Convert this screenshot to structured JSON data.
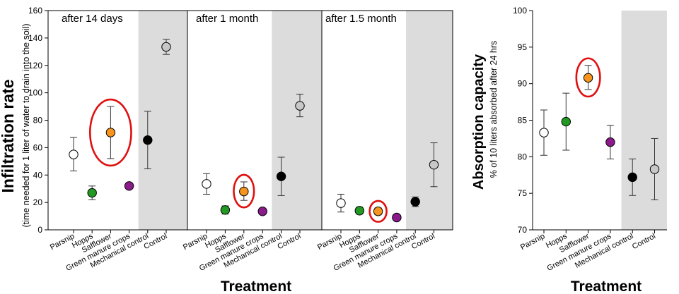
{
  "figure": {
    "left_ylabel": "Infiltration rate",
    "left_ylabel_sub": "(time needed for 1 liter of water to drain into the soil)",
    "left_xlabel": "Treatment",
    "right_ylabel": "Absorption capacity",
    "right_ylabel_sub": "% of 10 liters absorbed after 24 hrs",
    "right_xlabel": "Treatment"
  },
  "chart_data": [
    {
      "type": "scatter",
      "title": "after 14 days",
      "categories": [
        "Parsnip",
        "Hopps",
        "Safflower",
        "Green manure crops",
        "Mechanical control",
        "Control"
      ],
      "values": [
        55,
        27,
        71,
        32,
        65.5,
        133.5
      ],
      "error_low": [
        43,
        22,
        52,
        32,
        44.5,
        128
      ],
      "error_high": [
        67.5,
        32,
        90,
        32,
        86.5,
        139
      ],
      "ylim": [
        0,
        160
      ],
      "yticks": [
        0,
        20,
        40,
        60,
        80,
        100,
        120,
        140,
        160
      ],
      "shaded_categories": [
        "Mechanical control",
        "Control"
      ],
      "highlighted": [
        "Safflower"
      ],
      "point_colors": [
        "#ffffff",
        "#229922",
        "#f7941d",
        "#8b1a8b",
        "#000000",
        "#c8c8c8"
      ]
    },
    {
      "type": "scatter",
      "title": "after 1 month",
      "categories": [
        "Parsnip",
        "Hopps",
        "Safflower",
        "Green manure crops",
        "Mechanical control",
        "Control"
      ],
      "values": [
        33.5,
        14.5,
        28,
        13.5,
        39,
        90.5
      ],
      "error_low": [
        26,
        11.5,
        21.5,
        13.5,
        25,
        82.5
      ],
      "error_high": [
        41,
        17.5,
        35,
        13.5,
        53,
        99
      ],
      "ylim": [
        0,
        160
      ],
      "shaded_categories": [
        "Mechanical control",
        "Control"
      ],
      "highlighted": [
        "Safflower"
      ],
      "point_colors": [
        "#ffffff",
        "#229922",
        "#f7941d",
        "#8b1a8b",
        "#000000",
        "#c8c8c8"
      ]
    },
    {
      "type": "scatter",
      "title": "after 1.5 month",
      "categories": [
        "Parsnip",
        "Hopps",
        "Safflower",
        "Green manure crops",
        "Mechanical control",
        "Control"
      ],
      "values": [
        19.5,
        14,
        13.5,
        9,
        20.5,
        47.5
      ],
      "error_low": [
        13,
        11.5,
        11,
        9,
        17,
        31.5
      ],
      "error_high": [
        26,
        16.5,
        16,
        9,
        24,
        63.5
      ],
      "ylim": [
        0,
        160
      ],
      "shaded_categories": [
        "Mechanical control",
        "Control"
      ],
      "highlighted": [
        "Safflower"
      ],
      "point_colors": [
        "#ffffff",
        "#229922",
        "#f7941d",
        "#8b1a8b",
        "#000000",
        "#c8c8c8"
      ]
    },
    {
      "type": "scatter",
      "title": "",
      "categories": [
        "Parsnip",
        "Hopps",
        "Safflower",
        "Green manure crops",
        "Mechanical control",
        "Control"
      ],
      "values": [
        83.3,
        84.8,
        90.8,
        82,
        77.2,
        78.3
      ],
      "error_low": [
        80.2,
        80.9,
        89.2,
        79.7,
        74.7,
        74.1
      ],
      "error_high": [
        86.4,
        88.7,
        92.5,
        84.3,
        79.7,
        82.5
      ],
      "ylim": [
        70,
        100
      ],
      "yticks": [
        70,
        75,
        80,
        85,
        90,
        95,
        100
      ],
      "shaded_categories": [
        "Mechanical control",
        "Control"
      ],
      "highlighted": [
        "Safflower"
      ],
      "point_colors": [
        "#ffffff",
        "#229922",
        "#f7941d",
        "#8b1a8b",
        "#000000",
        "#c8c8c8"
      ]
    }
  ]
}
